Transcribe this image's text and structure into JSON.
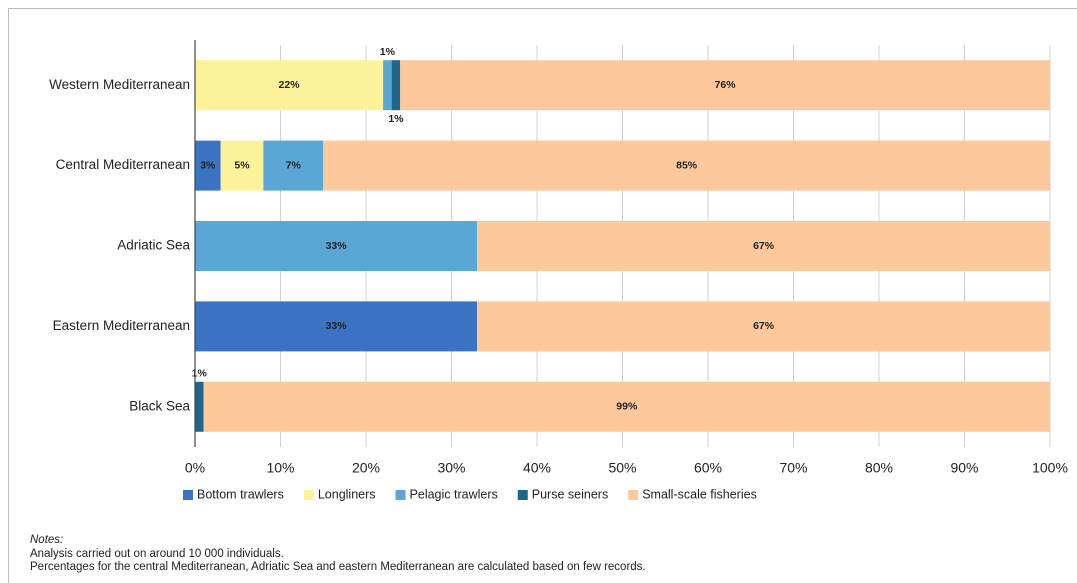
{
  "chart_data": {
    "type": "stacked-barh",
    "categories": [
      "Western Mediterranean",
      "Central Mediterranean",
      "Adriatic Sea",
      "Eastern Mediterranean",
      "Black Sea"
    ],
    "series": [
      {
        "name": "Bottom trawlers",
        "color": "#3b74c3",
        "values": [
          0,
          3,
          0,
          33,
          0
        ],
        "value_labels": [
          null,
          "3%",
          null,
          "33%",
          null
        ]
      },
      {
        "name": "Longliners",
        "color": "#fdf29a",
        "values": [
          22,
          5,
          0,
          0,
          0
        ],
        "value_labels": [
          "22%",
          "5%",
          null,
          null,
          null
        ]
      },
      {
        "name": "Pelagic trawlers",
        "color": "#5aa6d5",
        "values": [
          1,
          7,
          33,
          0,
          0
        ],
        "value_labels": [
          "1%",
          "7%",
          "33%",
          null,
          null
        ]
      },
      {
        "name": "Purse seiners",
        "color": "#1f678a",
        "values": [
          1,
          0,
          0,
          0,
          1
        ],
        "value_labels": [
          "1%",
          null,
          null,
          null,
          "1%"
        ]
      },
      {
        "name": "Small-scale fisheries",
        "color": "#fdc99c",
        "values": [
          76,
          85,
          67,
          67,
          99
        ],
        "value_labels": [
          "76%",
          "85%",
          "67%",
          "67%",
          "99%"
        ]
      }
    ],
    "xlim": [
      0,
      100
    ],
    "xticks": [
      {
        "value": 0,
        "label": "0%"
      },
      {
        "value": 10,
        "label": "10%"
      },
      {
        "value": 20,
        "label": "20%"
      },
      {
        "value": 30,
        "label": "30%"
      },
      {
        "value": 40,
        "label": "40%"
      },
      {
        "value": 50,
        "label": "50%"
      },
      {
        "value": 60,
        "label": "60%"
      },
      {
        "value": 70,
        "label": "70%"
      },
      {
        "value": 80,
        "label": "80%"
      },
      {
        "value": 90,
        "label": "90%"
      },
      {
        "value": 100,
        "label": "100%"
      }
    ],
    "grid": true,
    "legend": "bottom",
    "notes_title": "Notes:",
    "notes": [
      "Analysis carried out on around 10 000 individuals.",
      "Percentages for the central Mediterranean, Adriatic Sea and eastern Mediterranean are calculated based on few records."
    ]
  }
}
